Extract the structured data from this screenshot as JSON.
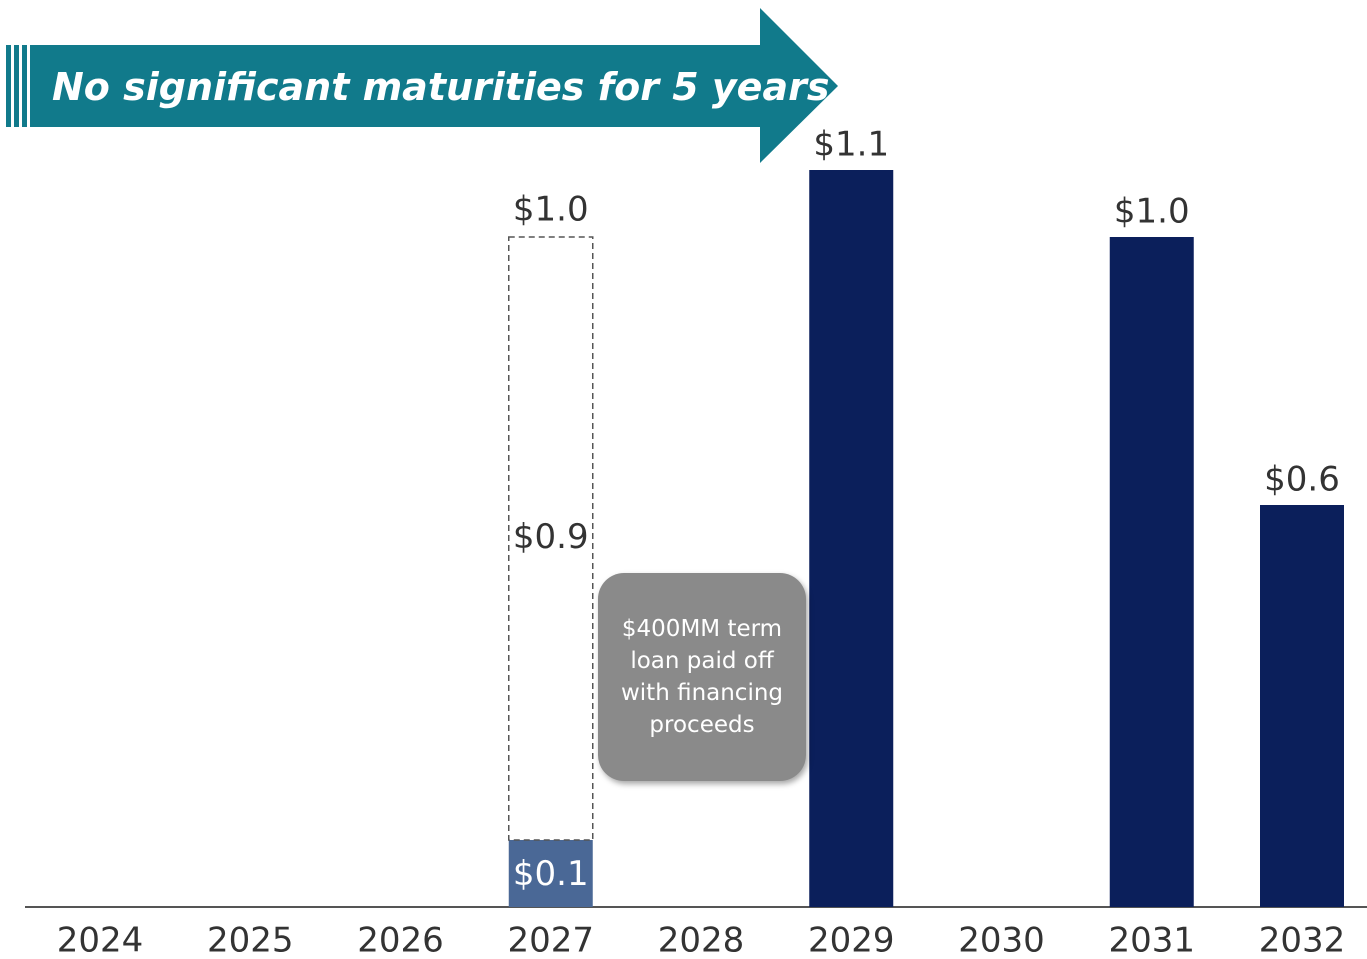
{
  "chart_data": {
    "type": "bar",
    "stacked": true,
    "title": "No significant maturities for 5 years",
    "categories": [
      "2024",
      "2025",
      "2026",
      "2027",
      "2028",
      "2029",
      "2030",
      "2031",
      "2032"
    ],
    "series": [
      {
        "colors": [
          null,
          null,
          null,
          "#4a6896",
          null,
          "#0b1f5b",
          null,
          "#0b1f5b",
          "#0b1f5b"
        ],
        "style": "solid",
        "values": [
          null,
          null,
          null,
          0.1,
          null,
          1.1,
          null,
          1.0,
          0.6
        ],
        "value_labels": [
          null,
          null,
          null,
          "$0.1",
          null,
          "$1.1",
          null,
          "$1.0",
          "$0.6"
        ]
      },
      {
        "color": "#555555",
        "style": "dashed",
        "values": [
          null,
          null,
          null,
          0.9,
          null,
          null,
          null,
          null,
          null
        ],
        "value_labels": [
          null,
          null,
          null,
          "$0.9",
          null,
          null,
          null,
          null,
          null
        ]
      }
    ],
    "totals": [
      {
        "category": 3,
        "value": 1.0,
        "label": "$1.0"
      }
    ],
    "callout": "$400MM term loan paid off with financing proceeds",
    "ylim": [
      0,
      1.1
    ]
  }
}
